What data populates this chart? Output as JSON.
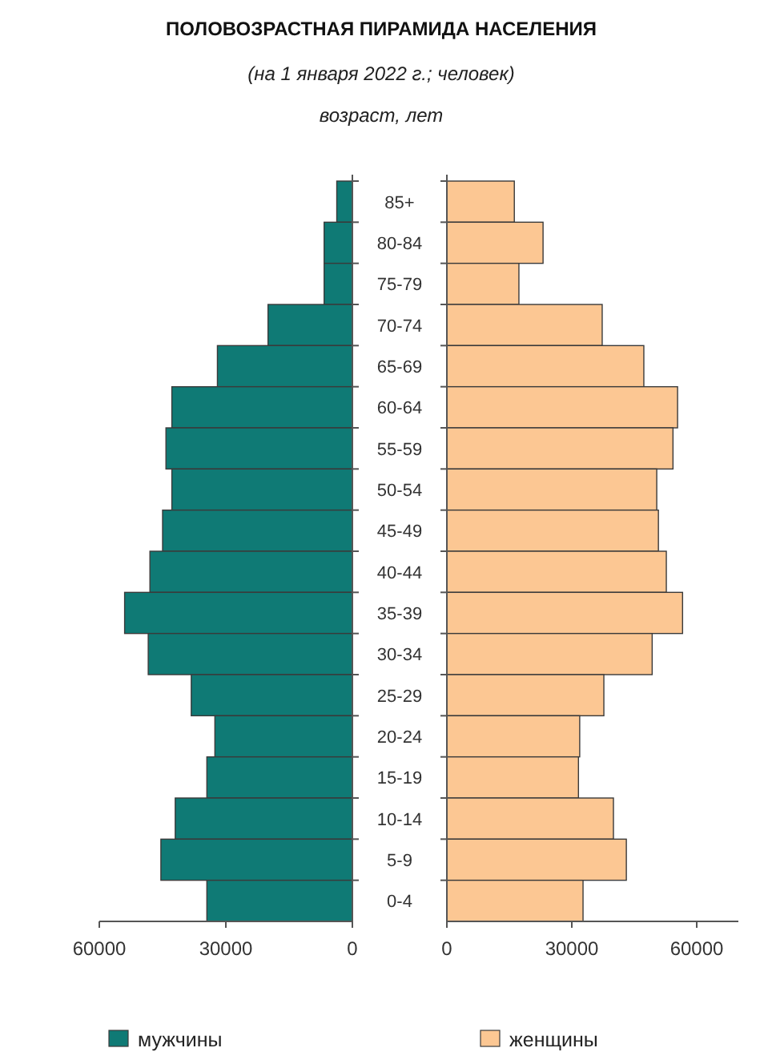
{
  "chart_data": [
    {
      "type": "bar",
      "orientation": "horizontal",
      "title": "ПОЛОВОЗРАСТНАЯ ПИРАМИДА НАСЕЛЕНИЯ",
      "subtitle": "(на 1 января 2022 г.; человек)",
      "ylabel": "возраст, лет",
      "categories": [
        "85+",
        "80-84",
        "75-79",
        "70-74",
        "65-69",
        "60-64",
        "55-59",
        "50-54",
        "45-49",
        "40-44",
        "35-39",
        "30-34",
        "25-29",
        "20-24",
        "15-19",
        "10-14",
        "5-9",
        "0-4"
      ],
      "xlim": [
        60000,
        0
      ],
      "xticks": [
        60000,
        30000,
        0
      ],
      "legend": "bottom",
      "series": [
        {
          "name": "мужчины",
          "color": "#0f7a75",
          "values": [
            3700,
            6700,
            6700,
            20000,
            32000,
            42800,
            44200,
            42800,
            45000,
            48000,
            54000,
            48400,
            38200,
            32600,
            34500,
            42000,
            45400,
            34500
          ]
        }
      ]
    },
    {
      "type": "bar",
      "orientation": "horizontal",
      "xlim": [
        0,
        70000
      ],
      "xticks": [
        0,
        30000,
        60000
      ],
      "tick_labels": "x",
      "legend": "bottom",
      "series": [
        {
          "name": "женщины",
          "color": "#fcc793",
          "values": [
            16200,
            23100,
            17300,
            37300,
            47300,
            55400,
            54300,
            50400,
            50800,
            52700,
            56600,
            49300,
            37700,
            31900,
            31600,
            40000,
            43100,
            32700
          ]
        }
      ]
    }
  ]
}
